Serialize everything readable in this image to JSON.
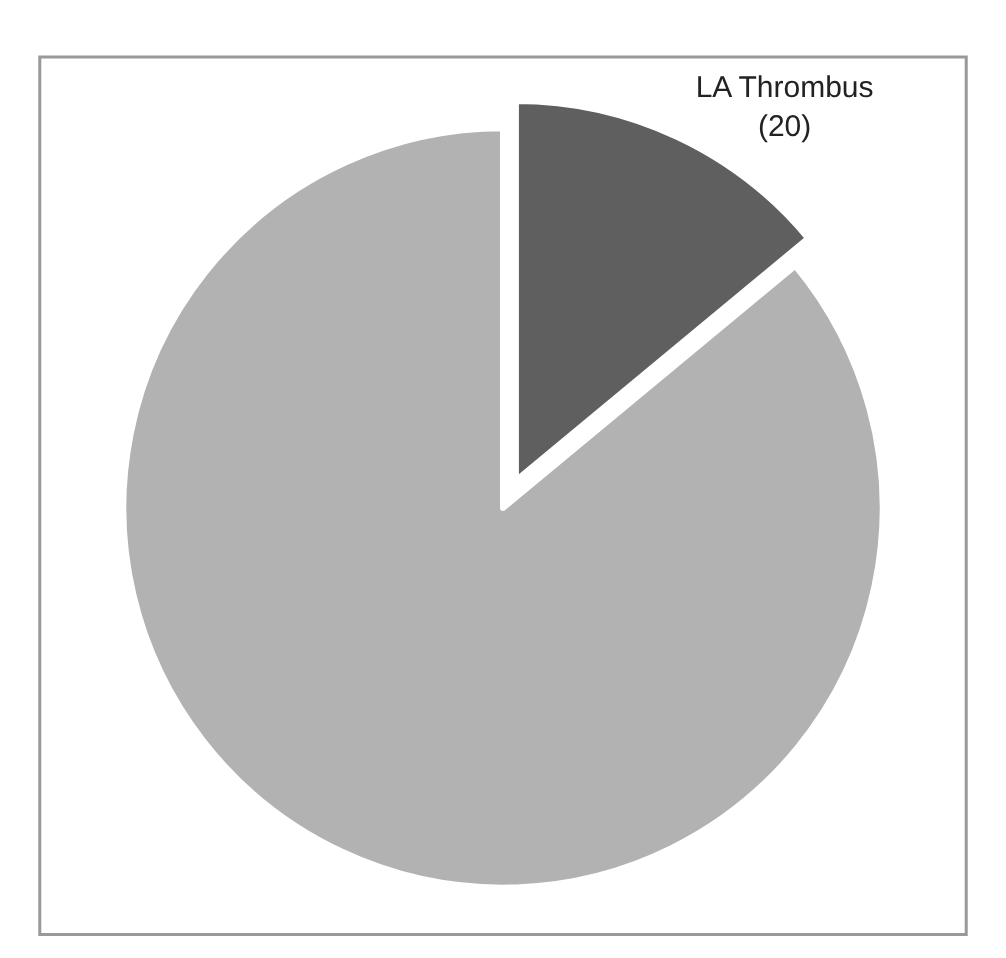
{
  "chart_data": {
    "type": "pie",
    "categories": [
      "LA Thrombus",
      null
    ],
    "values": [
      20,
      123
    ],
    "value_labels": [
      "(20)",
      null
    ],
    "colors": [
      "#5f5f5f",
      "#b2b2b2"
    ],
    "legend": false
  }
}
